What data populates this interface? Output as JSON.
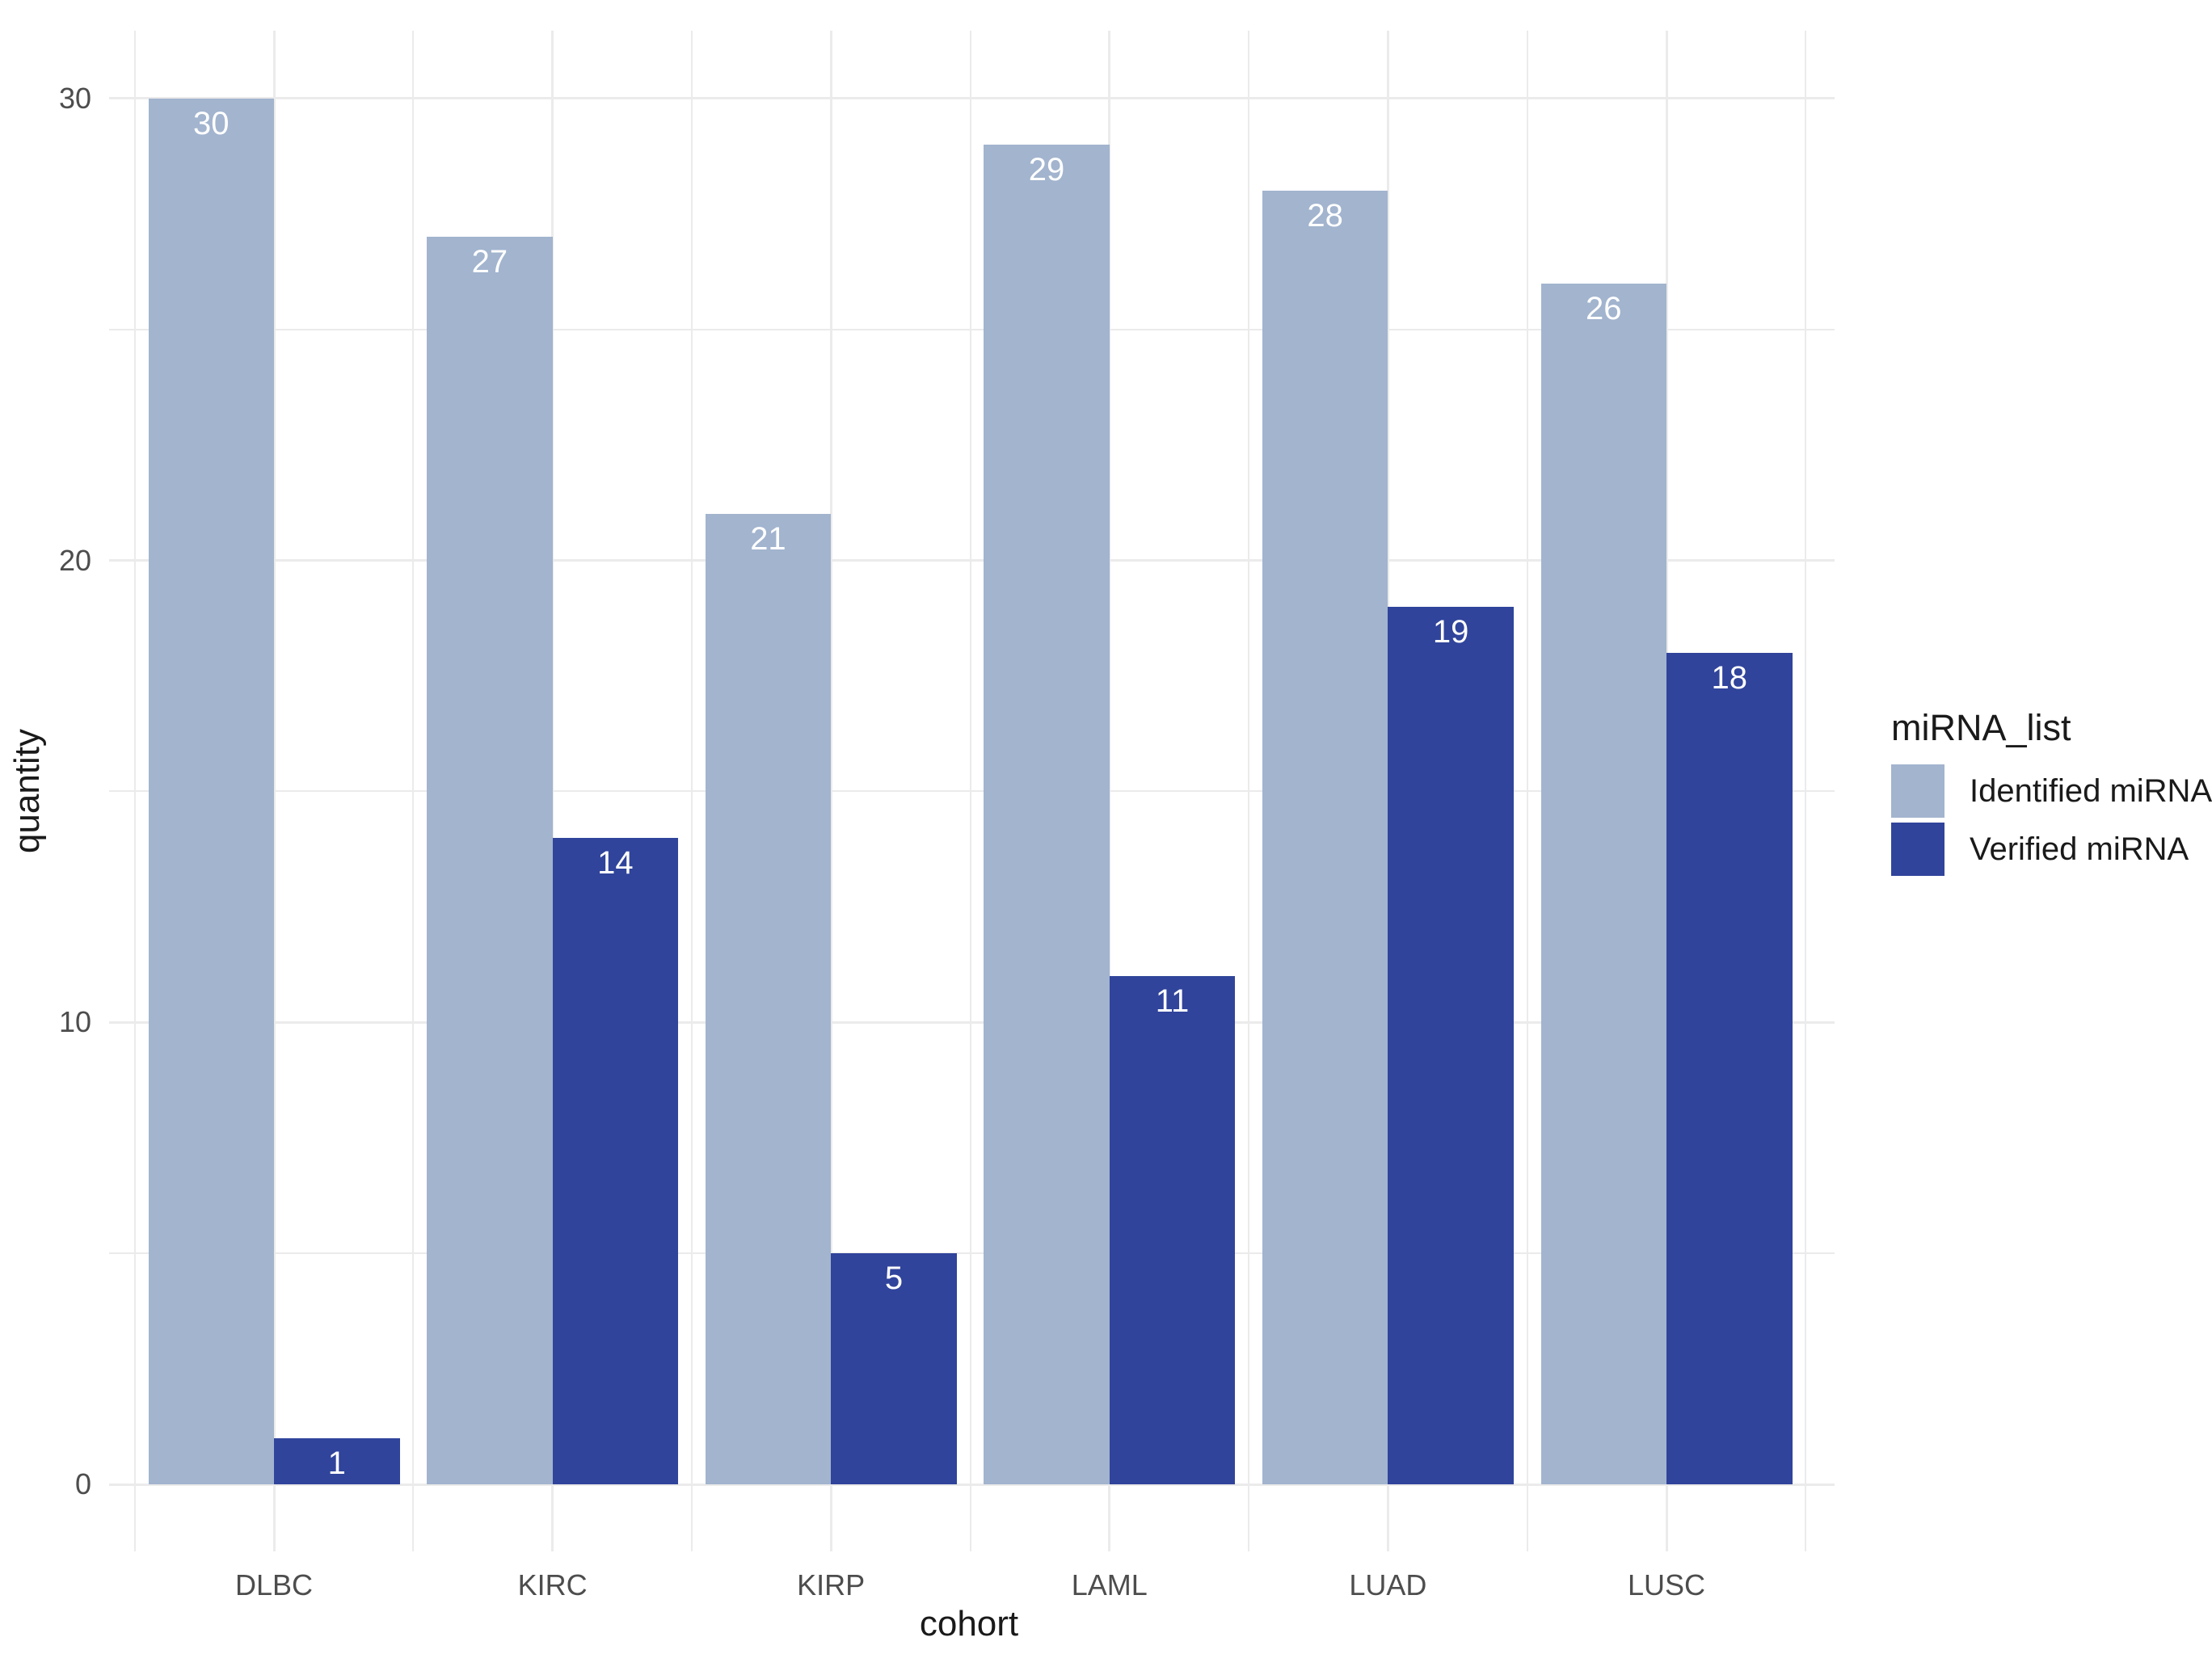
{
  "chart_data": {
    "type": "bar",
    "title": "",
    "xlabel": "cohort",
    "ylabel": "quantity",
    "categories": [
      "DLBC",
      "KIRC",
      "KIRP",
      "LAML",
      "LUAD",
      "LUSC"
    ],
    "series": [
      {
        "name": "Identified miRNA",
        "color": "#a2b4ce",
        "values": [
          30,
          27,
          21,
          29,
          28,
          26
        ]
      },
      {
        "name": "Verified miRNA",
        "color": "#30449b",
        "values": [
          1,
          14,
          5,
          11,
          19,
          18
        ]
      }
    ],
    "ylim": [
      0,
      30
    ],
    "y_major_ticks": [
      0,
      10,
      20,
      30
    ],
    "y_minor_ticks": [
      5,
      15,
      25
    ],
    "grid": true,
    "bar_value_labels_shown": true,
    "legend": {
      "title": "miRNA_list",
      "position": "right",
      "entries": [
        "Identified miRNA",
        "Verified miRNA"
      ]
    }
  },
  "colors": {
    "identified_mirna": "#a2b4ce",
    "verified_mirna": "#30449b",
    "gridline": "#ebebeb",
    "tick_text": "#4d4d4d",
    "title_text": "#1a1a1a",
    "bar_label_text": "#ffffff",
    "background": "#ffffff"
  }
}
